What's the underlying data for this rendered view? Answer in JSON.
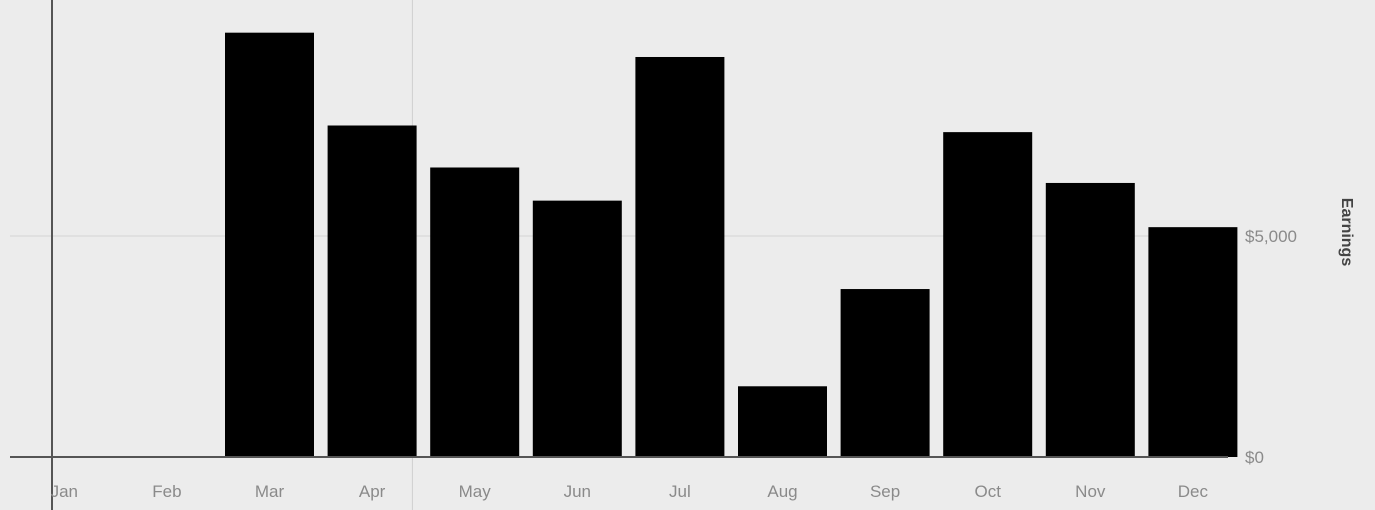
{
  "chart_data": {
    "type": "bar",
    "title": "",
    "xlabel": "",
    "ylabel": "Earnings",
    "categories": [
      "Jan",
      "Feb",
      "Mar",
      "Apr",
      "May",
      "Jun",
      "Jul",
      "Aug",
      "Sep",
      "Oct",
      "Nov",
      "Dec"
    ],
    "values": [
      0,
      0,
      9600,
      7500,
      6550,
      5800,
      9050,
      1600,
      3800,
      7350,
      6200,
      5200
    ],
    "ylim": [
      0,
      10000
    ],
    "yticks": [
      {
        "value": 0,
        "label": "$0"
      },
      {
        "value": 5000,
        "label": "$5,000"
      }
    ],
    "y_axis_position": "right",
    "grid": true,
    "bar_color": "#000000",
    "background_color": "#ececec",
    "gridline_color": "#dcdcdc",
    "axis_color": "#555555"
  }
}
